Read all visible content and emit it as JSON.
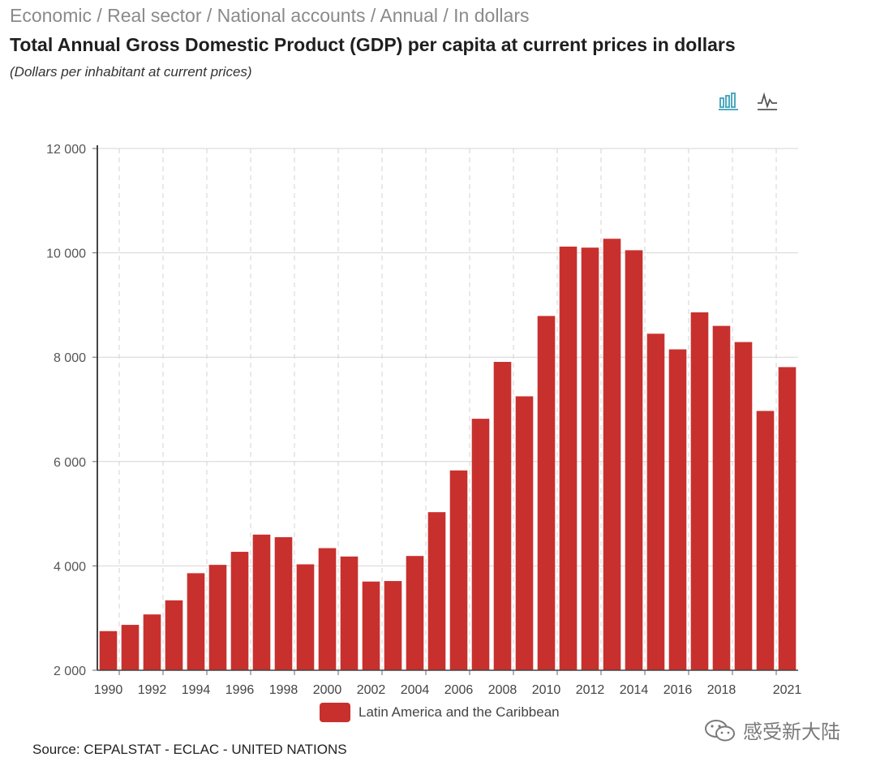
{
  "header": {
    "breadcrumb": "Economic / Real sector / National accounts / Annual / In dollars",
    "title": "Total Annual Gross Domestic Product (GDP) per capita at current prices in dollars",
    "subtitle": "(Dollars per inhabitant at current prices)"
  },
  "toolbar": {
    "bar_icon": "bar-chart-icon",
    "line_icon": "line-chart-icon",
    "active": "bar",
    "active_color": "#3aa0b8",
    "inactive_color": "#555555"
  },
  "chart_data": {
    "type": "bar",
    "categories": [
      "1990",
      "1991",
      "1992",
      "1993",
      "1994",
      "1995",
      "1996",
      "1997",
      "1998",
      "1999",
      "2000",
      "2001",
      "2002",
      "2003",
      "2004",
      "2005",
      "2006",
      "2007",
      "2008",
      "2009",
      "2010",
      "2011",
      "2012",
      "2013",
      "2014",
      "2015",
      "2016",
      "2017",
      "2018",
      "2019",
      "2020",
      "2021"
    ],
    "x_tick_labels": [
      "1990",
      "1992",
      "1994",
      "1996",
      "1998",
      "2000",
      "2002",
      "2004",
      "2006",
      "2008",
      "2010",
      "2012",
      "2014",
      "2016",
      "2018",
      "2021"
    ],
    "series": [
      {
        "name": "Latin America and the Caribbean",
        "color": "#c8302e",
        "values": [
          2750,
          2870,
          3070,
          3340,
          3860,
          4020,
          4270,
          4600,
          4550,
          4030,
          4340,
          4180,
          3700,
          3710,
          4190,
          5030,
          5830,
          6820,
          7910,
          7250,
          8790,
          10120,
          10100,
          10270,
          10050,
          8450,
          8150,
          8860,
          8600,
          8290,
          6970,
          7810
        ]
      }
    ],
    "ylim": [
      2000,
      12000
    ],
    "y_ticks": [
      2000,
      4000,
      6000,
      8000,
      10000,
      12000
    ],
    "y_tick_labels": [
      "2 000",
      "4 000",
      "6 000",
      "8 000",
      "10 000",
      "12 000"
    ],
    "grid": true,
    "legend_position": "bottom-center"
  },
  "footer": {
    "source": "Source: CEPALSTAT - ECLAC - UNITED NATIONS",
    "watermark_icon": "wechat-icon",
    "watermark_text": "感受新大陆"
  }
}
